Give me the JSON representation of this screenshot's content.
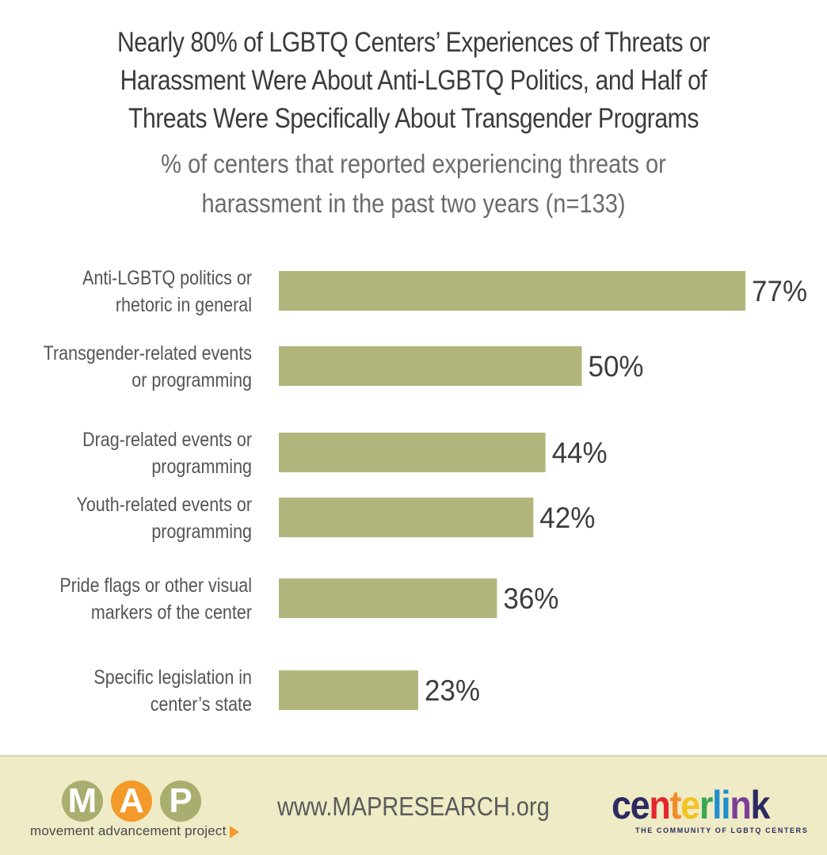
{
  "title_lines": [
    "Nearly 80% of LGBTQ Centers’ Experiences of Threats or",
    "Harassment Were About Anti-LGBTQ Politics, and Half of",
    "Threats Were Specifically About Transgender Programs"
  ],
  "subtitle_lines": [
    "% of centers that reported experiencing threats or",
    "harassment in the past two years (n=133)"
  ],
  "chart_data": {
    "type": "bar",
    "orientation": "horizontal",
    "title": "Nearly 80% of LGBTQ Centers’ Experiences of Threats or Harassment Were About Anti-LGBTQ Politics, and Half of Threats Were Specifically About Transgender Programs",
    "subtitle": "% of centers that reported experiencing threats or harassment in the past two years (n=133)",
    "categories": [
      [
        "Anti-LGBTQ politics or",
        "rhetoric in general"
      ],
      [
        "Transgender-related events",
        "or programming"
      ],
      [
        "Drag-related events or",
        "programming"
      ],
      [
        "Youth-related events or",
        "programming"
      ],
      [
        "Pride flags or other visual",
        "markers of the center"
      ],
      [
        "Specific legislation in",
        "center’s state"
      ]
    ],
    "values": [
      77,
      50,
      44,
      42,
      36,
      23
    ],
    "value_labels": [
      "77%",
      "50%",
      "44%",
      "42%",
      "36%",
      "23%"
    ],
    "unit": "%",
    "xlim": [
      0,
      100
    ],
    "bar_color": "#b2b67d",
    "grid": false,
    "legend": "none"
  },
  "footer": {
    "map_letters": [
      "M",
      "A",
      "P"
    ],
    "map_colors": [
      "#a9ad6e",
      "#f39a2b",
      "#a9ad6e"
    ],
    "map_tagline": "movement advancement project",
    "url": "www.MAPRESEARCH.org",
    "centerlink_letters": [
      "c",
      "e",
      "n",
      "t",
      "e",
      "r",
      "l",
      "i",
      "n",
      "k"
    ],
    "centerlink_colors": [
      "#2c2a60",
      "#2c2a60",
      "#e3262b",
      "#f28c28",
      "#f5c223",
      "#3aa655",
      "#1f8fd0",
      "#1f8fd0",
      "#7b3f98",
      "#2c2a60"
    ],
    "centerlink_tagline": "THE COMMUNITY OF LGBTQ CENTERS"
  }
}
